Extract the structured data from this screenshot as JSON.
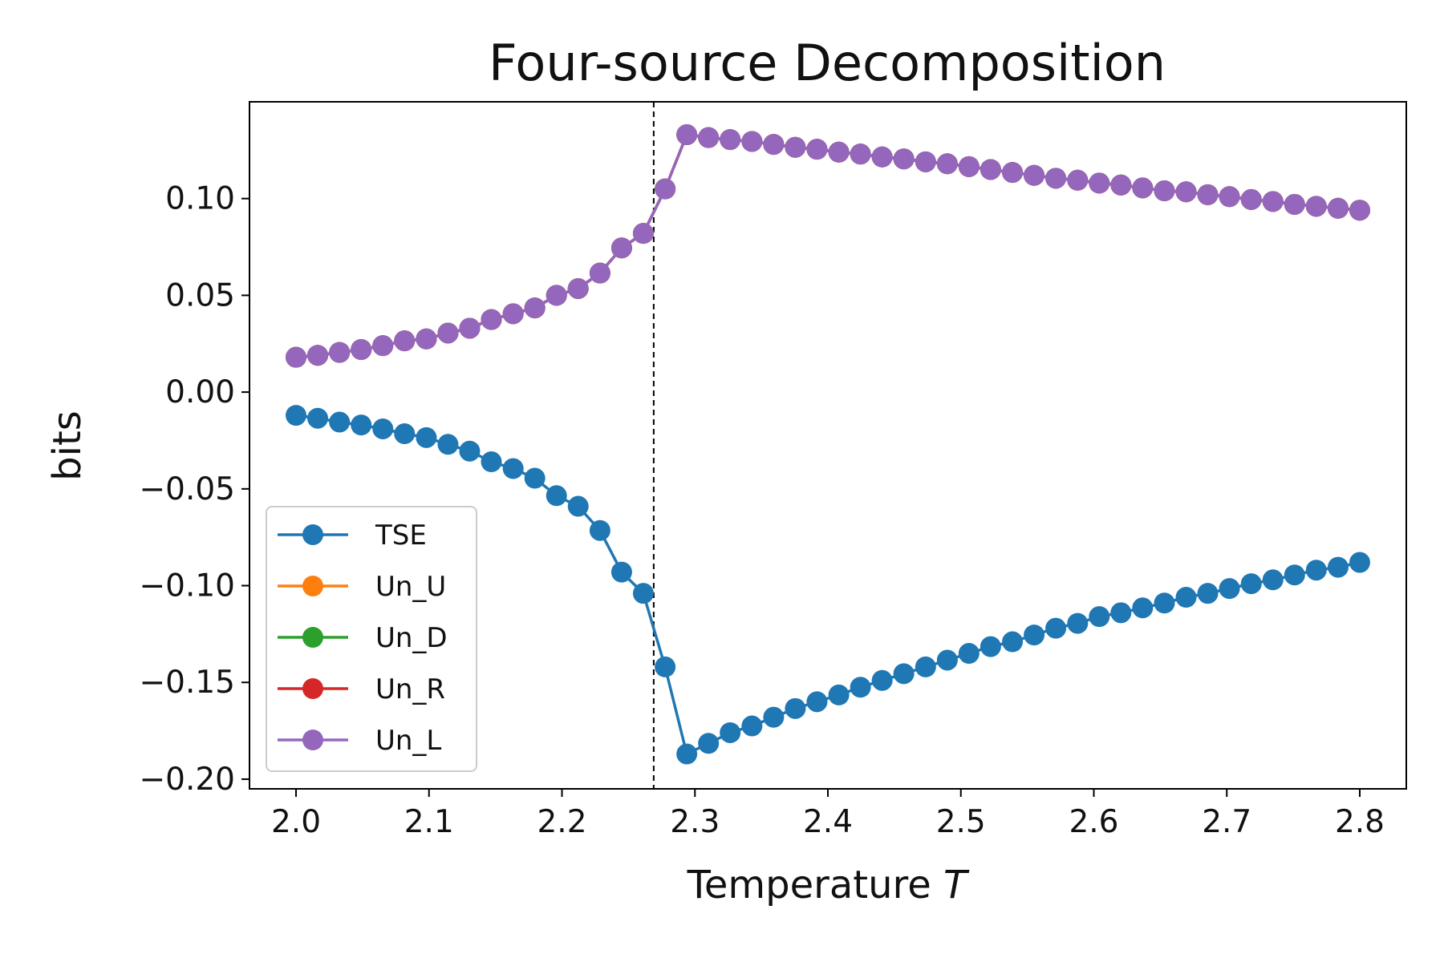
{
  "chart_data": {
    "type": "line",
    "title": "Four-source Decomposition",
    "xlabel_prefix": "Temperature ",
    "xlabel_var": "T",
    "ylabel": "bits",
    "xlim": [
      1.965,
      2.835
    ],
    "ylim": [
      -0.205,
      0.15
    ],
    "x_ticks": [
      2.0,
      2.1,
      2.2,
      2.3,
      2.4,
      2.5,
      2.6,
      2.7,
      2.8
    ],
    "x_tick_labels": [
      "2.0",
      "2.1",
      "2.2",
      "2.3",
      "2.4",
      "2.5",
      "2.6",
      "2.7",
      "2.8"
    ],
    "y_ticks": [
      0.1,
      0.05,
      0.0,
      -0.05,
      -0.1,
      -0.15,
      -0.2
    ],
    "y_tick_labels": [
      "0.10",
      "0.05",
      "0.00",
      "−0.05",
      "−0.10",
      "−0.15",
      "−0.20"
    ],
    "vline_x": 2.269,
    "legend_position": "lower-left",
    "x": [
      2.0,
      2.0163,
      2.0327,
      2.049,
      2.0653,
      2.0816,
      2.098,
      2.1143,
      2.1306,
      2.1469,
      2.1633,
      2.1796,
      2.1959,
      2.2122,
      2.2286,
      2.2449,
      2.2612,
      2.2776,
      2.2939,
      2.3102,
      2.3265,
      2.3429,
      2.3592,
      2.3755,
      2.3918,
      2.4082,
      2.4245,
      2.4408,
      2.4571,
      2.4735,
      2.4898,
      2.5061,
      2.5224,
      2.5388,
      2.5551,
      2.5714,
      2.5878,
      2.6041,
      2.6204,
      2.6367,
      2.6531,
      2.6694,
      2.6857,
      2.702,
      2.7184,
      2.7347,
      2.751,
      2.7673,
      2.7837,
      2.8
    ],
    "series": [
      {
        "name": "TSE",
        "color": "#1f77b4",
        "values": [
          -0.012,
          -0.0135,
          -0.0155,
          -0.017,
          -0.019,
          -0.0215,
          -0.0235,
          -0.027,
          -0.0305,
          -0.036,
          -0.0395,
          -0.0445,
          -0.0535,
          -0.059,
          -0.0715,
          -0.093,
          -0.104,
          -0.142,
          -0.187,
          -0.1815,
          -0.176,
          -0.1725,
          -0.168,
          -0.1635,
          -0.16,
          -0.1565,
          -0.1525,
          -0.149,
          -0.1455,
          -0.142,
          -0.1385,
          -0.135,
          -0.1315,
          -0.129,
          -0.1255,
          -0.122,
          -0.1195,
          -0.116,
          -0.114,
          -0.1115,
          -0.109,
          -0.106,
          -0.104,
          -0.1015,
          -0.099,
          -0.097,
          -0.0945,
          -0.092,
          -0.0905,
          -0.088
        ]
      },
      {
        "name": "Un_U",
        "color": "#ff7f0e",
        "values": [
          0.018,
          0.019,
          0.0205,
          0.022,
          0.024,
          0.0265,
          0.0275,
          0.0305,
          0.033,
          0.0375,
          0.0405,
          0.0435,
          0.05,
          0.0535,
          0.0615,
          0.0745,
          0.082,
          0.105,
          0.133,
          0.1315,
          0.1305,
          0.1295,
          0.128,
          0.1265,
          0.1255,
          0.124,
          0.123,
          0.1215,
          0.1205,
          0.119,
          0.118,
          0.1165,
          0.115,
          0.1135,
          0.112,
          0.1105,
          0.1095,
          0.108,
          0.107,
          0.1055,
          0.104,
          0.1035,
          0.102,
          0.101,
          0.0995,
          0.0985,
          0.097,
          0.096,
          0.095,
          0.094
        ]
      },
      {
        "name": "Un_D",
        "color": "#2ca02c",
        "values": [
          0.018,
          0.019,
          0.0205,
          0.022,
          0.024,
          0.0265,
          0.0275,
          0.0305,
          0.033,
          0.0375,
          0.0405,
          0.0435,
          0.05,
          0.0535,
          0.0615,
          0.0745,
          0.082,
          0.105,
          0.133,
          0.1315,
          0.1305,
          0.1295,
          0.128,
          0.1265,
          0.1255,
          0.124,
          0.123,
          0.1215,
          0.1205,
          0.119,
          0.118,
          0.1165,
          0.115,
          0.1135,
          0.112,
          0.1105,
          0.1095,
          0.108,
          0.107,
          0.1055,
          0.104,
          0.1035,
          0.102,
          0.101,
          0.0995,
          0.0985,
          0.097,
          0.096,
          0.095,
          0.094
        ]
      },
      {
        "name": "Un_R",
        "color": "#d62728",
        "values": [
          0.018,
          0.019,
          0.0205,
          0.022,
          0.024,
          0.0265,
          0.0275,
          0.0305,
          0.033,
          0.0375,
          0.0405,
          0.0435,
          0.05,
          0.0535,
          0.0615,
          0.0745,
          0.082,
          0.105,
          0.133,
          0.1315,
          0.1305,
          0.1295,
          0.128,
          0.1265,
          0.1255,
          0.124,
          0.123,
          0.1215,
          0.1205,
          0.119,
          0.118,
          0.1165,
          0.115,
          0.1135,
          0.112,
          0.1105,
          0.1095,
          0.108,
          0.107,
          0.1055,
          0.104,
          0.1035,
          0.102,
          0.101,
          0.0995,
          0.0985,
          0.097,
          0.096,
          0.095,
          0.094
        ]
      },
      {
        "name": "Un_L",
        "color": "#9467bd",
        "values": [
          0.018,
          0.019,
          0.0205,
          0.022,
          0.024,
          0.0265,
          0.0275,
          0.0305,
          0.033,
          0.0375,
          0.0405,
          0.0435,
          0.05,
          0.0535,
          0.0615,
          0.0745,
          0.082,
          0.105,
          0.133,
          0.1315,
          0.1305,
          0.1295,
          0.128,
          0.1265,
          0.1255,
          0.124,
          0.123,
          0.1215,
          0.1205,
          0.119,
          0.118,
          0.1165,
          0.115,
          0.1135,
          0.112,
          0.1105,
          0.1095,
          0.108,
          0.107,
          0.1055,
          0.104,
          0.1035,
          0.102,
          0.101,
          0.0995,
          0.0985,
          0.097,
          0.096,
          0.095,
          0.094
        ]
      }
    ]
  }
}
